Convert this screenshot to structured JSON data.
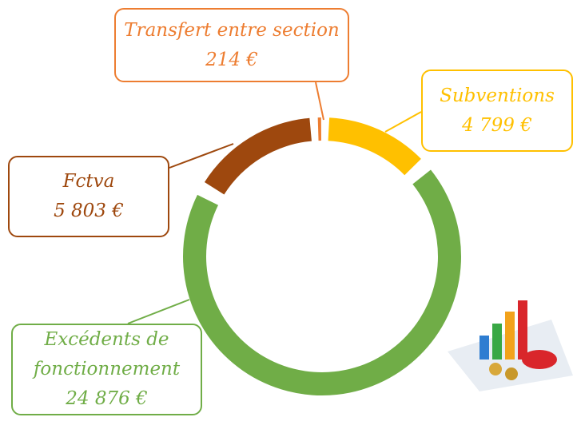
{
  "chart_data": {
    "type": "donut",
    "categories": [
      "Subventions",
      "Excédents de fonctionnement",
      "Fctva",
      "Transfert entre section"
    ],
    "values": [
      4799,
      24876,
      5803,
      214
    ],
    "value_labels": [
      "4 799 €",
      "24 876 €",
      "5 803 €",
      "214 €"
    ],
    "colors": [
      "#FFC000",
      "#70AD47",
      "#9E480E",
      "#ED7D31"
    ]
  }
}
